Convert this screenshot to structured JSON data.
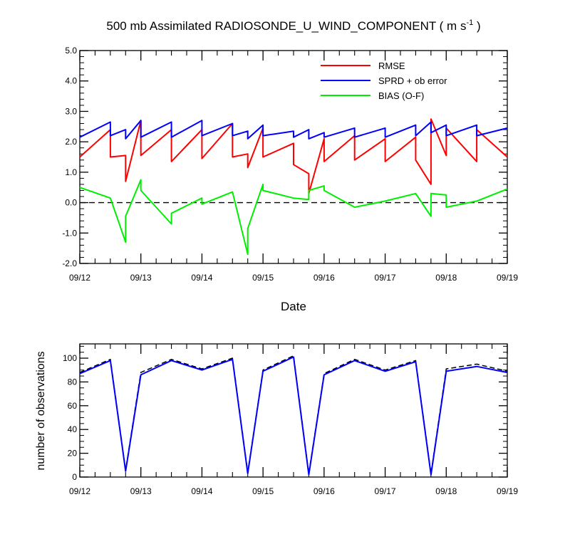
{
  "chart_data": [
    {
      "type": "line",
      "title": "500 mb Assimilated RADIOSONDE_U_WIND_COMPONENT ( m s",
      "title_sup": "-1",
      "title_end": " )",
      "xlabel": "Date",
      "ylabel": "",
      "xlim": [
        0,
        7
      ],
      "ylim": [
        -2.0,
        5.0
      ],
      "x_tick_labels": [
        "09/12",
        "09/13",
        "09/14",
        "09/15",
        "09/16",
        "09/17",
        "09/18",
        "09/19"
      ],
      "y_ticks": [
        -2.0,
        -1.0,
        0.0,
        1.0,
        2.0,
        3.0,
        4.0,
        5.0
      ],
      "y_tick_labels": [
        "-2.0",
        "-1.0",
        "0.0",
        "1.0",
        "2.0",
        "3.0",
        "4.0",
        "5.0"
      ],
      "reference_line": {
        "y": 0.0,
        "style": "dashed",
        "color": "#000000"
      },
      "legend_position": "top-right",
      "series": [
        {
          "name": "RMSE",
          "color": "#ff0000",
          "x": [
            0,
            0.5,
            0.5,
            0.75,
            0.75,
            1.0,
            1.0,
            1.5,
            1.5,
            2.0,
            2.0,
            2.5,
            2.5,
            2.75,
            2.75,
            3.0,
            3.0,
            3.5,
            3.5,
            3.75,
            3.75,
            4.0,
            4.0,
            4.5,
            4.5,
            5.0,
            5.0,
            5.5,
            5.5,
            5.75,
            5.75,
            6.0,
            6.0,
            6.5,
            6.5,
            7.0
          ],
          "y": [
            1.5,
            2.4,
            1.5,
            1.55,
            0.7,
            2.7,
            1.55,
            2.4,
            1.35,
            2.4,
            1.45,
            2.6,
            1.5,
            1.6,
            1.15,
            2.45,
            1.5,
            1.95,
            1.25,
            0.95,
            0.3,
            2.1,
            1.35,
            2.2,
            1.4,
            2.1,
            1.35,
            2.15,
            1.4,
            0.6,
            2.75,
            1.55,
            2.45,
            1.35,
            2.4,
            1.5
          ]
        },
        {
          "name": "SPRD + ob error",
          "color": "#0000ff",
          "x": [
            0,
            0.5,
            0.5,
            0.75,
            0.75,
            1.0,
            1.0,
            1.5,
            1.5,
            2.0,
            2.0,
            2.5,
            2.5,
            2.75,
            2.75,
            3.0,
            3.0,
            3.5,
            3.5,
            3.75,
            3.75,
            4.0,
            4.0,
            4.5,
            4.5,
            5.0,
            5.0,
            5.5,
            5.5,
            5.75,
            5.75,
            6.0,
            6.0,
            6.5,
            6.5,
            7.0
          ],
          "y": [
            2.15,
            2.65,
            2.2,
            2.4,
            2.1,
            2.7,
            2.15,
            2.65,
            2.15,
            2.7,
            2.2,
            2.6,
            2.2,
            2.35,
            2.1,
            2.55,
            2.2,
            2.35,
            2.15,
            2.4,
            2.1,
            2.3,
            2.15,
            2.45,
            2.15,
            2.45,
            2.15,
            2.55,
            2.2,
            2.65,
            2.3,
            2.55,
            2.2,
            2.55,
            2.2,
            2.45
          ]
        },
        {
          "name": "BIAS (O-F)",
          "color": "#00ee00",
          "x": [
            0,
            0.5,
            0.75,
            0.75,
            1.0,
            1.0,
            1.5,
            1.5,
            2.0,
            2.0,
            2.5,
            2.75,
            2.75,
            3.0,
            3.0,
            3.5,
            3.75,
            3.75,
            4.0,
            4.0,
            4.5,
            5.0,
            5.5,
            5.75,
            5.75,
            6.0,
            6.0,
            6.5,
            7.0
          ],
          "y": [
            0.5,
            0.15,
            -1.3,
            -0.45,
            0.75,
            0.4,
            -0.7,
            -0.35,
            0.15,
            -0.05,
            0.35,
            -1.7,
            -0.85,
            0.6,
            0.4,
            0.15,
            0.1,
            0.4,
            0.55,
            0.4,
            -0.15,
            0.05,
            0.3,
            -0.45,
            0.3,
            0.25,
            -0.15,
            0.05,
            0.45
          ]
        }
      ]
    },
    {
      "type": "line",
      "title": "",
      "xlabel": "",
      "ylabel": "number of observations",
      "xlim": [
        0,
        7
      ],
      "ylim": [
        0,
        112
      ],
      "x_tick_labels": [
        "09/12",
        "09/13",
        "09/14",
        "09/15",
        "09/16",
        "09/17",
        "09/18",
        "09/19"
      ],
      "y_ticks": [
        0,
        20,
        40,
        60,
        80,
        100
      ],
      "y_tick_labels": [
        "0",
        "20",
        "40",
        "60",
        "80",
        "100"
      ],
      "series": [
        {
          "color": "#000000",
          "style": "dashed",
          "x": [
            0,
            0.5,
            0.75,
            1.0,
            1.5,
            2.0,
            2.5,
            2.75,
            3.0,
            3.5,
            3.75,
            4.0,
            4.5,
            5.0,
            5.5,
            5.75,
            6.0,
            6.5,
            7.0
          ],
          "y": [
            88,
            99,
            6,
            88,
            99,
            91,
            100,
            4,
            90,
            102,
            3,
            87,
            99,
            90,
            98,
            3,
            91,
            95,
            89
          ]
        },
        {
          "color": "#0000ff",
          "style": "solid",
          "x": [
            0,
            0.5,
            0.75,
            1.0,
            1.5,
            2.0,
            2.5,
            2.75,
            3.0,
            3.5,
            3.75,
            4.0,
            4.5,
            5.0,
            5.5,
            5.75,
            6.0,
            6.5,
            7.0
          ],
          "y": [
            87,
            98,
            5,
            86,
            98,
            90,
            99,
            3,
            89,
            101,
            2,
            86,
            98,
            89,
            97,
            2,
            89,
            93,
            88
          ]
        }
      ]
    }
  ]
}
